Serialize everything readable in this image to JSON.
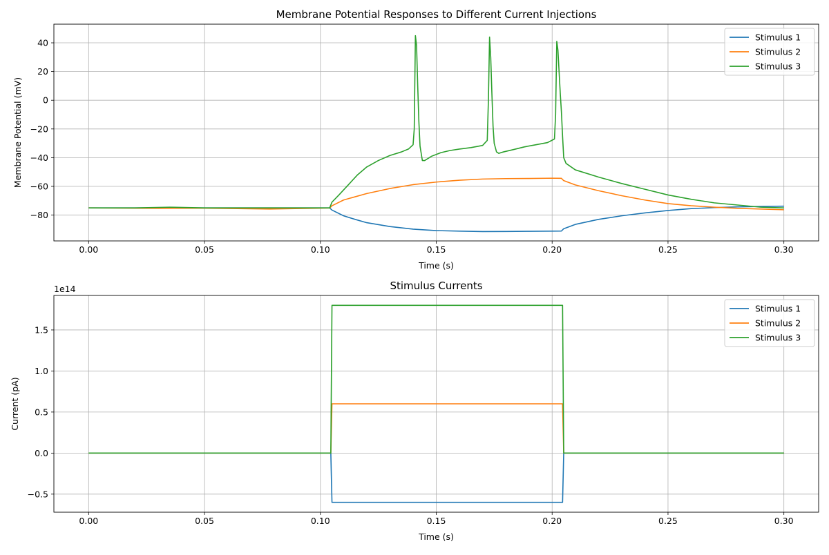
{
  "chart_data": [
    {
      "type": "line",
      "title": "Membrane Potential Responses to Different Current Injections",
      "xlabel": "Time (s)",
      "ylabel": "Membrane Potential (mV)",
      "xlim": [
        -0.015,
        0.315
      ],
      "ylim": [
        -98,
        53
      ],
      "xticks": [
        0.0,
        0.05,
        0.1,
        0.15,
        0.2,
        0.25,
        0.3
      ],
      "xtick_labels": [
        "0.00",
        "0.05",
        "0.10",
        "0.15",
        "0.20",
        "0.25",
        "0.30"
      ],
      "yticks": [
        -80,
        -60,
        -40,
        -20,
        0,
        20,
        40
      ],
      "ytick_labels": [
        "−80",
        "−60",
        "−40",
        "−20",
        "0",
        "20",
        "40"
      ],
      "grid": true,
      "legend": "top-right",
      "series": [
        {
          "name": "Stimulus 1",
          "color": "#1f77b4",
          "x": [
            0.0,
            0.05,
            0.104,
            0.105,
            0.11,
            0.115,
            0.12,
            0.13,
            0.14,
            0.15,
            0.16,
            0.17,
            0.18,
            0.19,
            0.2,
            0.204,
            0.205,
            0.21,
            0.22,
            0.23,
            0.24,
            0.25,
            0.26,
            0.27,
            0.28,
            0.29,
            0.3
          ],
          "y": [
            -75,
            -75,
            -75,
            -76.5,
            -80.5,
            -83,
            -85.3,
            -88,
            -89.8,
            -90.8,
            -91.2,
            -91.5,
            -91.4,
            -91.3,
            -91.2,
            -91.1,
            -89.5,
            -86.5,
            -83,
            -80.5,
            -78.5,
            -76.8,
            -75.5,
            -74.8,
            -74.3,
            -74,
            -73.8
          ]
        },
        {
          "name": "Stimulus 2",
          "color": "#ff7f0e",
          "x": [
            0.0,
            0.03,
            0.05,
            0.078,
            0.1,
            0.104,
            0.105,
            0.11,
            0.12,
            0.13,
            0.14,
            0.15,
            0.16,
            0.17,
            0.18,
            0.19,
            0.2,
            0.204,
            0.205,
            0.21,
            0.22,
            0.23,
            0.24,
            0.25,
            0.26,
            0.27,
            0.28,
            0.29,
            0.3
          ],
          "y": [
            -75,
            -75.3,
            -75.2,
            -75.8,
            -75.2,
            -75.1,
            -73.5,
            -69.5,
            -65,
            -61.5,
            -58.8,
            -57,
            -55.7,
            -54.9,
            -54.6,
            -54.5,
            -54.3,
            -54.4,
            -56,
            -59,
            -63,
            -66.5,
            -69.5,
            -72,
            -73.5,
            -74.5,
            -75.3,
            -75.8,
            -76.3
          ]
        },
        {
          "name": "Stimulus 3",
          "color": "#2ca02c",
          "x": [
            0.0,
            0.02,
            0.035,
            0.05,
            0.07,
            0.09,
            0.104,
            0.105,
            0.108,
            0.112,
            0.116,
            0.12,
            0.125,
            0.13,
            0.135,
            0.138,
            0.14,
            0.1405,
            0.141,
            0.1415,
            0.142,
            0.1425,
            0.143,
            0.144,
            0.145,
            0.148,
            0.152,
            0.156,
            0.16,
            0.165,
            0.17,
            0.172,
            0.1725,
            0.173,
            0.1735,
            0.174,
            0.1745,
            0.175,
            0.176,
            0.177,
            0.179,
            0.183,
            0.188,
            0.193,
            0.198,
            0.201,
            0.2015,
            0.202,
            0.2025,
            0.203,
            0.2035,
            0.204,
            0.2045,
            0.205,
            0.206,
            0.21,
            0.22,
            0.23,
            0.24,
            0.25,
            0.26,
            0.27,
            0.28,
            0.29,
            0.3
          ],
          "y": [
            -75,
            -75,
            -74.5,
            -75,
            -75,
            -75,
            -75,
            -71,
            -66,
            -59,
            -52,
            -46.5,
            -42,
            -38.5,
            -36,
            -34,
            -31,
            -20,
            45,
            38,
            10,
            -15,
            -32,
            -42,
            -42,
            -39,
            -36.5,
            -35,
            -34,
            -33,
            -31.5,
            -28,
            0,
            44,
            30,
            5,
            -18,
            -30,
            -36,
            -37,
            -36,
            -34.5,
            -32.5,
            -31,
            -29.5,
            -27,
            -10,
            41,
            35,
            20,
            5,
            -8,
            -25,
            -40,
            -44,
            -48.5,
            -53.5,
            -58,
            -62,
            -66,
            -69,
            -71.5,
            -73,
            -74.5,
            -75
          ]
        }
      ]
    },
    {
      "type": "line",
      "title": "Stimulus Currents",
      "xlabel": "Time (s)",
      "ylabel": "Current (pA)",
      "offset_text": "1e14",
      "xlim": [
        -0.015,
        0.315
      ],
      "ylim": [
        -0.72,
        1.92
      ],
      "xticks": [
        0.0,
        0.05,
        0.1,
        0.15,
        0.2,
        0.25,
        0.3
      ],
      "xtick_labels": [
        "0.00",
        "0.05",
        "0.10",
        "0.15",
        "0.20",
        "0.25",
        "0.30"
      ],
      "yticks": [
        -0.5,
        0.0,
        0.5,
        1.0,
        1.5
      ],
      "ytick_labels": [
        "−0.5",
        "0.0",
        "0.5",
        "1.0",
        "1.5"
      ],
      "grid": true,
      "legend": "top-right",
      "series": [
        {
          "name": "Stimulus 1",
          "color": "#1f77b4",
          "x": [
            0.0,
            0.1045,
            0.105,
            0.2045,
            0.205,
            0.3
          ],
          "y": [
            0,
            0,
            -0.6,
            -0.6,
            0,
            0
          ]
        },
        {
          "name": "Stimulus 2",
          "color": "#ff7f0e",
          "x": [
            0.0,
            0.1045,
            0.105,
            0.2045,
            0.205,
            0.3
          ],
          "y": [
            0,
            0,
            0.6,
            0.6,
            0,
            0
          ]
        },
        {
          "name": "Stimulus 3",
          "color": "#2ca02c",
          "x": [
            0.0,
            0.1045,
            0.105,
            0.2045,
            0.205,
            0.3
          ],
          "y": [
            0,
            0,
            1.8,
            1.8,
            0,
            0
          ]
        }
      ]
    }
  ]
}
